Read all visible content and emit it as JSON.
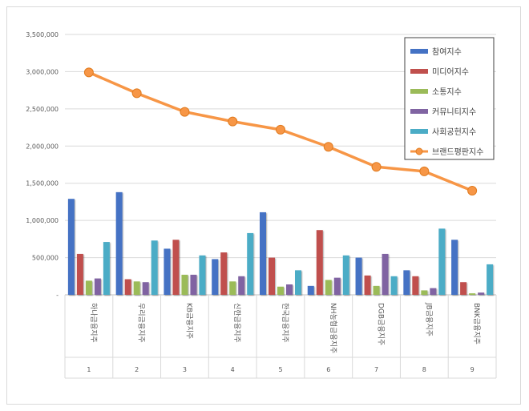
{
  "chart_data": {
    "type": "bar",
    "title": "",
    "xlabel": "",
    "ylabel": "",
    "ylim": [
      0,
      3500000
    ],
    "yticks": [
      0,
      500000,
      1000000,
      1500000,
      2000000,
      2500000,
      3000000,
      3500000
    ],
    "ytick_labels": [
      "-",
      "500,000",
      "1,000,000",
      "1,500,000",
      "2,000,000",
      "2,500,000",
      "3,000,000",
      "3,500,000"
    ],
    "categories": [
      "하나금융지주",
      "우리금융지주",
      "KB금융지주",
      "신한금융지주",
      "한국금융지주",
      "NH농협금융지주",
      "DGB금융지주",
      "JB금융지주",
      "BNK금융지주"
    ],
    "category_index": [
      "1",
      "2",
      "3",
      "4",
      "5",
      "6",
      "7",
      "8",
      "9"
    ],
    "grid": true,
    "legend_position": "top-right",
    "series": [
      {
        "name": "참여지수",
        "type": "bar",
        "color": "#4472c4",
        "values": [
          1290000,
          1380000,
          620000,
          480000,
          1110000,
          120000,
          500000,
          330000,
          740000
        ]
      },
      {
        "name": "미디어지수",
        "type": "bar",
        "color": "#c0504d",
        "values": [
          550000,
          210000,
          740000,
          570000,
          500000,
          870000,
          260000,
          250000,
          170000
        ]
      },
      {
        "name": "소통지수",
        "type": "bar",
        "color": "#9bbb59",
        "values": [
          190000,
          180000,
          270000,
          180000,
          110000,
          200000,
          120000,
          60000,
          20000
        ]
      },
      {
        "name": "커뮤니티지수",
        "type": "bar",
        "color": "#8064a2",
        "values": [
          220000,
          170000,
          270000,
          250000,
          140000,
          230000,
          550000,
          90000,
          30000
        ]
      },
      {
        "name": "사회공헌지수",
        "type": "bar",
        "color": "#4bacc6",
        "values": [
          710000,
          730000,
          530000,
          830000,
          330000,
          530000,
          250000,
          890000,
          410000
        ]
      },
      {
        "name": "브랜드평판지수",
        "type": "line",
        "color": "#f79646",
        "values": [
          2990000,
          2710000,
          2460000,
          2330000,
          2220000,
          1990000,
          1720000,
          1660000,
          1400000
        ]
      }
    ]
  }
}
